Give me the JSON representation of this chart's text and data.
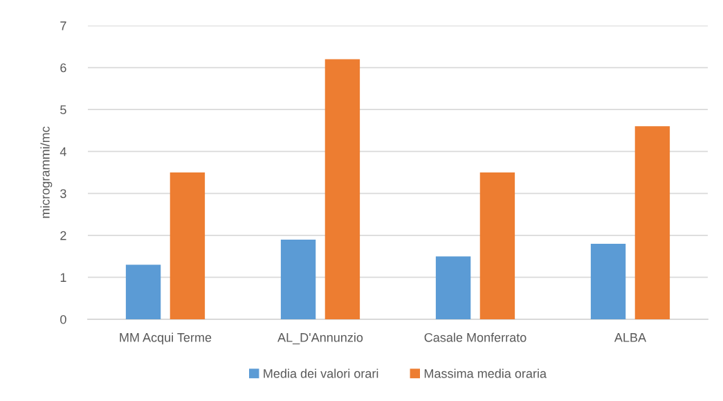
{
  "chart_data": {
    "type": "bar",
    "ylabel": "microgrammi/mc",
    "categories": [
      "MM Acqui Terme",
      "AL_D'Annunzio",
      "Casale Monferrato",
      "ALBA"
    ],
    "series": [
      {
        "name": "Media dei valori orari",
        "color": "#5b9bd5",
        "values": [
          1.3,
          1.9,
          1.5,
          1.8
        ]
      },
      {
        "name": "Massima media oraria",
        "color": "#ed7d31",
        "values": [
          3.5,
          6.2,
          3.5,
          4.6
        ]
      }
    ],
    "ylim": [
      0,
      7
    ],
    "yticks": [
      0,
      1,
      2,
      3,
      4,
      5,
      6,
      7
    ],
    "grid": "y",
    "legend": "bottom"
  }
}
